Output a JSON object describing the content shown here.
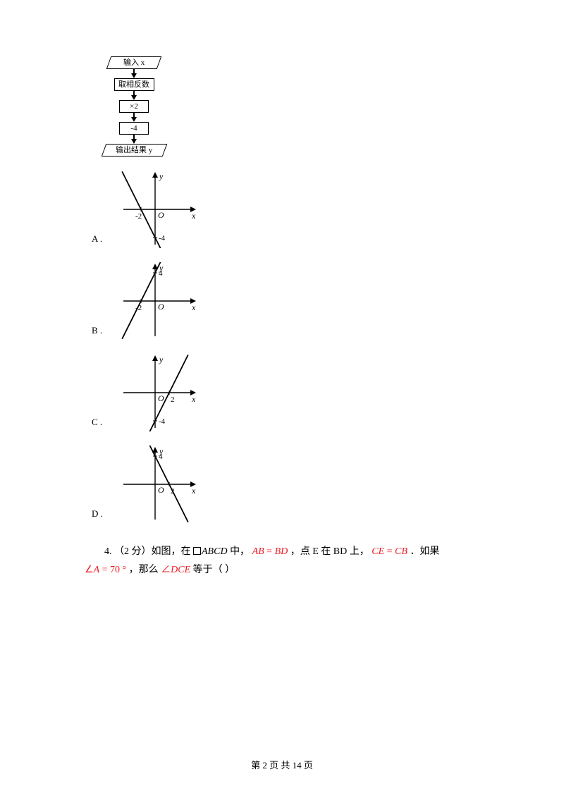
{
  "flowchart": {
    "step1": "输入 x",
    "step2": "取相反数",
    "step3": "×2",
    "step4": "-4",
    "step5": "输出结果 y"
  },
  "options": {
    "a_label": "A .",
    "b_label": "B .",
    "c_label": "C .",
    "d_label": "D ."
  },
  "graph_a": {
    "x_label": "x",
    "y_label": "y",
    "origin": "O",
    "x_tick": "-2",
    "y_tick": "-4",
    "x_tick_val": -2,
    "y_tick_val": -4,
    "slope_sign": -1
  },
  "graph_b": {
    "x_label": "x",
    "y_label": "y",
    "origin": "O",
    "x_tick": "-2",
    "y_tick": "4",
    "x_tick_val": -2,
    "y_tick_val": 4,
    "slope_sign": 1
  },
  "graph_c": {
    "x_label": "x",
    "y_label": "y",
    "origin": "O",
    "x_tick": "2",
    "y_tick": "-4",
    "x_tick_val": 2,
    "y_tick_val": -4,
    "slope_sign": 1
  },
  "graph_d": {
    "x_label": "x",
    "y_label": "y",
    "origin": "O",
    "x_tick": "2",
    "y_tick": "4",
    "x_tick_val": 2,
    "y_tick_val": 4,
    "slope_sign": -1
  },
  "axis_style": {
    "color": "#000000",
    "width": 1.4,
    "font_size": 12
  },
  "line_style": {
    "color": "#000000",
    "width": 1.8
  },
  "q4": {
    "prefix": "4. （2 分）如图，在 ",
    "shape": "ABCD",
    "mid1": " 中， ",
    "eq1_l": "AB",
    "eq1_r": "BD",
    "mid2": " ，点 E 在 BD 上， ",
    "eq2_l": "CE",
    "eq2_r": "CB",
    "mid3": " ．如果",
    "angle1_pre": "∠",
    "angle1_var": "A",
    "angle1_eq": " = 70 °",
    "mid4": " ，那么 ",
    "angle2_pre": "∠",
    "angle2_var": "DCE",
    "tail": " 等于（   ）"
  },
  "footer": {
    "text": "第 2 页 共 14 页"
  },
  "colors": {
    "text": "#000000",
    "accent": "#ed1c24",
    "bg": "#ffffff"
  }
}
